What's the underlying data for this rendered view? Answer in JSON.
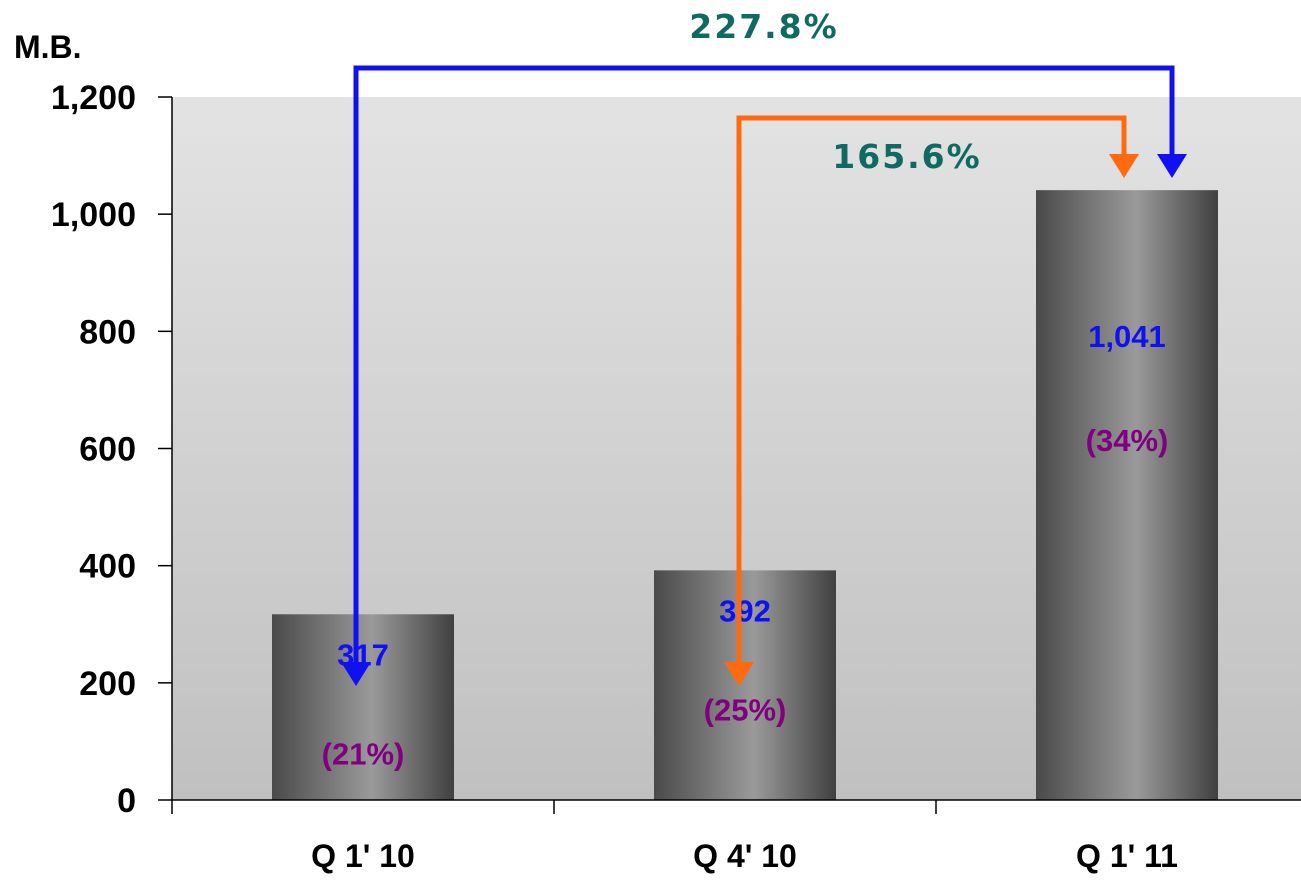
{
  "chart_data": {
    "type": "bar",
    "ylabel": "M.B.",
    "ylim": [
      0,
      1200
    ],
    "yticks": [
      "0",
      "200",
      "400",
      "600",
      "800",
      "1,000",
      "1,200"
    ],
    "categories": [
      "Q 1' 10",
      "Q 4' 10",
      "Q 1' 11"
    ],
    "values": [
      317,
      392,
      1041
    ],
    "value_labels": [
      "317",
      "392",
      "1,041"
    ],
    "share_labels": [
      "(21%)",
      "(25%)",
      "(34%)"
    ],
    "annotations": [
      {
        "text": "227.8%",
        "from": "Q 1' 10",
        "to": "Q 1' 11",
        "color": "#1010f0"
      },
      {
        "text": "165.6%",
        "from": "Q 4' 10",
        "to": "Q 1' 11",
        "color": "#ff6a10"
      }
    ],
    "colors": {
      "value_text": "#1010f0",
      "share_text": "#800080",
      "growth_text": "#0f6b62",
      "bar": "#5a5a5a"
    }
  }
}
